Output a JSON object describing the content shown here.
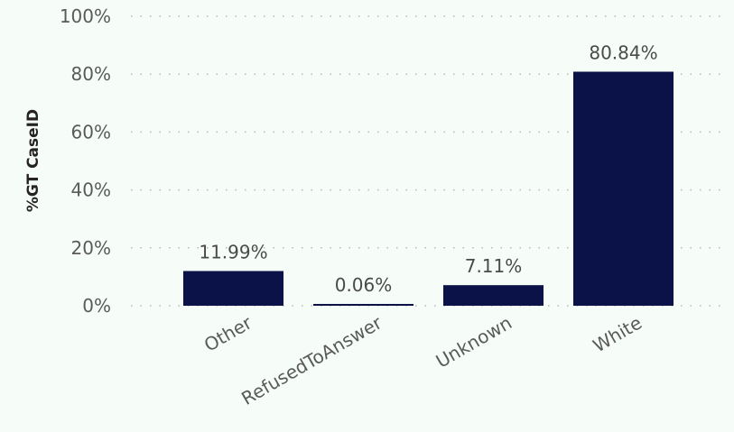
{
  "chart_data": {
    "type": "bar",
    "categories": [
      "Other",
      "RefusedToAnswer",
      "Unknown",
      "White"
    ],
    "values": [
      11.99,
      0.06,
      7.11,
      80.84
    ],
    "data_labels": [
      "11.99%",
      "0.06%",
      "7.11%",
      "80.84%"
    ],
    "ylabel": "%GT CaseID",
    "xlabel": "",
    "ylim": [
      0,
      100
    ],
    "y_ticks": [
      0,
      20,
      40,
      60,
      80,
      100
    ],
    "y_tick_labels": [
      "0%",
      "20%",
      "40%",
      "60%",
      "80%",
      "100%"
    ],
    "grid": true,
    "bar_color": "#0b1248",
    "background": "#f6fdf8"
  }
}
